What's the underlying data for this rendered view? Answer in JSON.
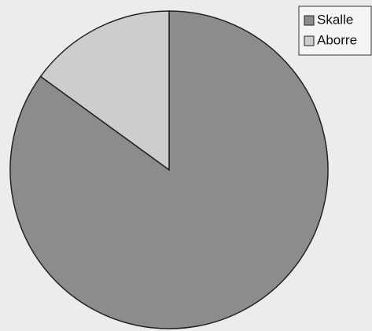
{
  "chart_data": {
    "type": "pie",
    "categories": [
      "Skalle",
      "Aborre"
    ],
    "values": [
      85,
      15
    ],
    "colors": [
      "#8c8c8c",
      "#cdcdcd"
    ],
    "start_angle": 0,
    "direction": "clockwise",
    "legend": "top-right"
  }
}
